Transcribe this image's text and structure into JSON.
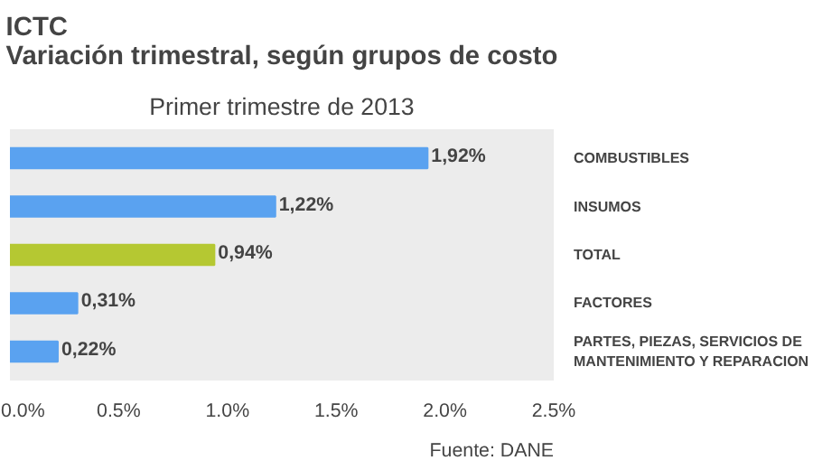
{
  "chart_data": {
    "type": "bar",
    "orientation": "horizontal",
    "title": "ICTC\nVariación trimestral, según grupos de costo",
    "subtitle": "Primer trimestre de 2013",
    "categories": [
      "COMBUSTIBLES",
      "INSUMOS",
      "TOTAL",
      "FACTORES",
      "PARTES, PIEZAS, SERVICIOS DE MANTENIMIENTO Y REPARACION"
    ],
    "values": [
      1.92,
      1.22,
      0.94,
      0.31,
      0.22
    ],
    "colors": [
      "#5aa2f0",
      "#5aa2f0",
      "#b5c832",
      "#5aa2f0",
      "#5aa2f0"
    ],
    "value_labels": [
      "1,92%",
      "1,22%",
      "0,94%",
      "0,31%",
      "0,22%"
    ],
    "xlim": [
      0,
      2.5
    ],
    "xticks": [
      {
        "value": 0,
        "label": "0.0%"
      },
      {
        "value": 0.5,
        "label": "0.5%"
      },
      {
        "value": 1,
        "label": "1.0%"
      },
      {
        "value": 1.5,
        "label": "1.5%"
      },
      {
        "value": 2,
        "label": "2.0%"
      },
      {
        "value": 2.5,
        "label": "2.5%"
      }
    ],
    "grid": false,
    "annotations": [
      "Fuente: DANE"
    ]
  }
}
